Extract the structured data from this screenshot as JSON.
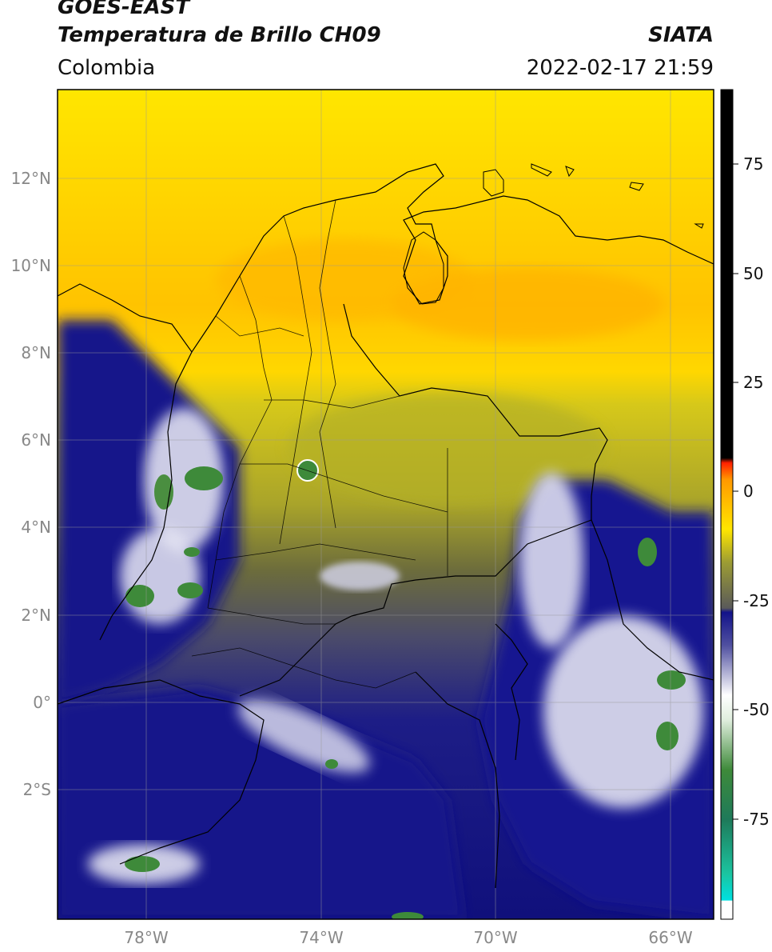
{
  "header": {
    "satellite": "GOES-EAST",
    "product": "Temperatura de Brillo CH09",
    "region": "Colombia",
    "agency": "SIATA",
    "datetime": "2022-02-17 21:59"
  },
  "map": {
    "lon_range": [
      -80,
      -65
    ],
    "lat_range": [
      -5,
      14
    ],
    "lon_ticks": [
      "78°W",
      "74°W",
      "70°W",
      "66°W"
    ],
    "lat_ticks": [
      "12°N",
      "10°N",
      "8°N",
      "6°N",
      "4°N",
      "2°N",
      "0°",
      "2°S"
    ],
    "grid": true
  },
  "colorbar": {
    "ticks": [
      "75",
      "50",
      "25",
      "0",
      "-25",
      "-50",
      "-75"
    ],
    "colors": {
      "hot": "#000000",
      "red": "#ff2000",
      "orange": "#ff9800",
      "yellow": "#ffe600",
      "olive": "#9c9c34",
      "gray": "#5a5a5a",
      "navy": "#13138a",
      "white": "#ffffff",
      "green": "#3e8a3a",
      "teal": "#1bc4a0",
      "cyan": "#00e0e0"
    }
  }
}
